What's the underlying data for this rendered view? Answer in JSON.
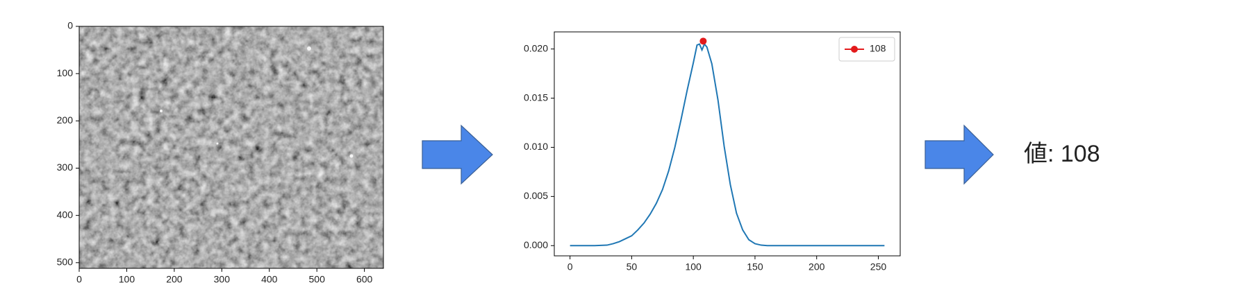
{
  "chart_data": [
    {
      "type": "image",
      "xlim": [
        0,
        640
      ],
      "ylim": [
        512,
        0
      ],
      "xticks": [
        0,
        100,
        200,
        300,
        400,
        500,
        600
      ],
      "yticks": [
        0,
        100,
        200,
        300,
        400,
        500
      ]
    },
    {
      "type": "line",
      "xlim": [
        -12.75,
        267.75
      ],
      "ylim": [
        -0.00104,
        0.02174
      ],
      "xticks": [
        0,
        50,
        100,
        150,
        200,
        250
      ],
      "yticks": [
        {
          "value": 0,
          "label": "0.000"
        },
        {
          "value": 0.005,
          "label": "0.005"
        },
        {
          "value": 0.01,
          "label": "0.010"
        },
        {
          "value": 0.015,
          "label": "0.015"
        },
        {
          "value": 0.02,
          "label": "0.020"
        }
      ],
      "legend": "upper right",
      "series": [
        {
          "color": "#1f77b4",
          "x": [
            0,
            10,
            20,
            30,
            35,
            40,
            45,
            50,
            55,
            60,
            65,
            70,
            75,
            80,
            85,
            90,
            95,
            100,
            103,
            105,
            107,
            109,
            111,
            115,
            120,
            125,
            130,
            135,
            140,
            145,
            150,
            155,
            160,
            200,
            255
          ],
          "values": [
            0,
            0,
            0,
            5e-05,
            0.0002,
            0.0004,
            0.0007,
            0.001,
            0.0016,
            0.0023,
            0.0032,
            0.0043,
            0.0057,
            0.0076,
            0.01,
            0.0128,
            0.0158,
            0.0186,
            0.0204,
            0.0205,
            0.0199,
            0.0205,
            0.0202,
            0.0185,
            0.0148,
            0.0101,
            0.0062,
            0.0033,
            0.0016,
            0.0006,
            0.0002,
            5e-05,
            0,
            0,
            0
          ]
        },
        {
          "name": "108",
          "color": "#e31a1c",
          "marker": true,
          "x": [
            108
          ],
          "values": [
            0.0208
          ]
        }
      ]
    }
  ],
  "result": "値: 108"
}
